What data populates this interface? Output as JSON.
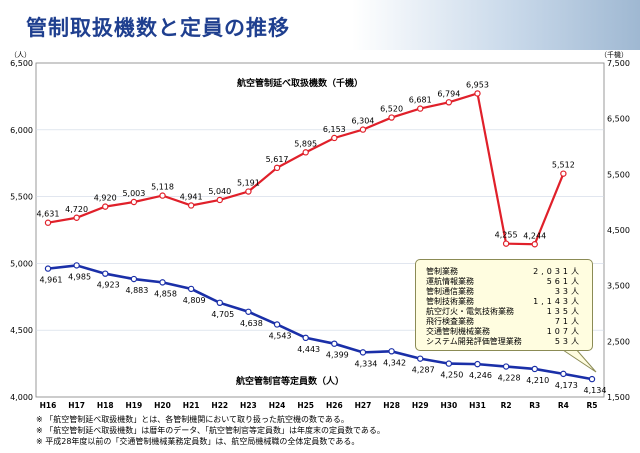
{
  "header": {
    "title": "管制取扱機数と定員の推移"
  },
  "units": {
    "left": "（人）",
    "right": "（千機）"
  },
  "series_labels": {
    "flights": "航空管制延べ取扱機数（千機）",
    "staff": "航空管制官等定員数（人）"
  },
  "colors": {
    "flights": "#e0202a",
    "staff": "#1a2fa8",
    "plot_bg": "#ffffff",
    "grid": "#cfd8e6"
  },
  "callout": {
    "rows": [
      {
        "name": "管制業務",
        "value": "2,031人"
      },
      {
        "name": "運航情報業務",
        "value": "561人"
      },
      {
        "name": "管制通信業務",
        "value": "33人"
      },
      {
        "name": "管制技術業務",
        "value": "1,143人"
      },
      {
        "name": "航空灯火・電気技術業務",
        "value": "135人"
      },
      {
        "name": "飛行検査業務",
        "value": "71人"
      },
      {
        "name": "交通管制機械業務",
        "value": "107人"
      },
      {
        "name": "システム開発評価管理業務",
        "value": "53人"
      }
    ]
  },
  "notes": [
    "※ 「航空管制延べ取扱機数」とは、各管制機関において取り扱った航空機の数である。",
    "※ 「航空管制延べ取扱機数」は暦年のデータ、「航空管制官等定員数」は年度末の定員数である。",
    "※ 平成28年度以前の「交通管制機械業務定員数」は、航空局機械職の全体定員数である。"
  ],
  "chart_data": {
    "type": "line",
    "categories": [
      "H16",
      "H17",
      "H18",
      "H19",
      "H20",
      "H21",
      "H22",
      "H23",
      "H24",
      "H25",
      "H26",
      "H27",
      "H28",
      "H29",
      "H30",
      "H31",
      "R2",
      "R3",
      "R4",
      "R5"
    ],
    "left_axis": {
      "range": [
        4000,
        6500
      ],
      "ticks": [
        "4,000",
        "4,500",
        "5,000",
        "5,500",
        "6,000",
        "6,500"
      ]
    },
    "right_axis": {
      "range": [
        1500,
        7500
      ],
      "ticks": [
        "1,500",
        "2,500",
        "3,500",
        "4,500",
        "5,500",
        "6,500",
        "7,500"
      ]
    },
    "series": [
      {
        "name": "航空管制延べ取扱機数（千機）",
        "axis": "right",
        "values": [
          4631,
          4720,
          4920,
          5003,
          5118,
          4941,
          5040,
          5191,
          5617,
          5895,
          6153,
          6304,
          6520,
          6681,
          6794,
          6953,
          4255,
          4244,
          5512,
          null
        ],
        "labels": [
          "4,631",
          "4,720",
          "4,920",
          "5,003",
          "5,118",
          "4,941",
          "5,040",
          "5,191",
          "5,617",
          "5,895",
          "6,153",
          "6,304",
          "6,520",
          "6,681",
          "6,794",
          "6,953",
          "4,255",
          "4,244",
          "5,512",
          ""
        ]
      },
      {
        "name": "航空管制官等定員数（人）",
        "axis": "left",
        "values": [
          4961,
          4985,
          4923,
          4883,
          4858,
          4809,
          4705,
          4638,
          4543,
          4443,
          4399,
          4334,
          4342,
          4287,
          4250,
          4246,
          4228,
          4210,
          4173,
          4134
        ],
        "labels": [
          "4,961",
          "4,985",
          "4,923",
          "4,883",
          "4,858",
          "4,809",
          "4,705",
          "4,638",
          "4,543",
          "4,443",
          "4,399",
          "4,334",
          "4,342",
          "4,287",
          "4,250",
          "4,246",
          "4,228",
          "4,210",
          "4,173",
          "4,134"
        ]
      }
    ]
  }
}
